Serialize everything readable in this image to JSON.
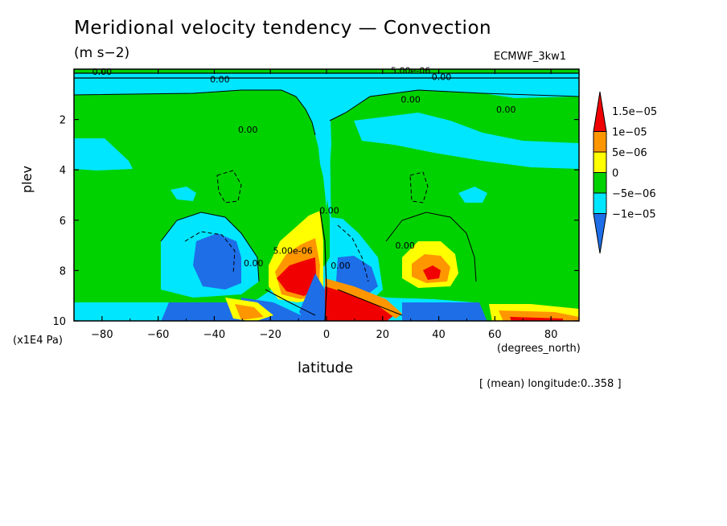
{
  "chart_data": {
    "type": "heatmap",
    "title": "Meridional velocity tendency — Convection",
    "units": "(m s−2)",
    "dataset": "ECMWF_3kw1",
    "xlabel": "latitude",
    "ylabel": "plev",
    "x_units": "(degrees_north)",
    "y_units": "(x1E4 Pa)",
    "note": "[ (mean) longitude:0..358 ]",
    "xlim": [
      -90,
      90
    ],
    "ylim": [
      0,
      10
    ],
    "y_inverted": true,
    "x_ticks": [
      {
        "v": -80,
        "label": "−80"
      },
      {
        "v": -60,
        "label": "−60"
      },
      {
        "v": -40,
        "label": "−40"
      },
      {
        "v": -20,
        "label": "−20"
      },
      {
        "v": 0,
        "label": "0"
      },
      {
        "v": 20,
        "label": "20"
      },
      {
        "v": 40,
        "label": "40"
      },
      {
        "v": 60,
        "label": "60"
      },
      {
        "v": 80,
        "label": "80"
      }
    ],
    "y_ticks": [
      {
        "v": 2,
        "label": "2"
      },
      {
        "v": 4,
        "label": "4"
      },
      {
        "v": 6,
        "label": "6"
      },
      {
        "v": 8,
        "label": "8"
      },
      {
        "v": 10,
        "label": "10"
      }
    ],
    "levels": [
      {
        "label": "−1e−05",
        "color": "#1e6ee8"
      },
      {
        "label": "−5e−06",
        "color": "#00e6ff"
      },
      {
        "label": "0",
        "color": "#00d200"
      },
      {
        "label": "5e−06",
        "color": "#ffff00"
      },
      {
        "label": "1e−05",
        "color": "#ff9600"
      },
      {
        "label": "1.5e−05",
        "color": "#f00000"
      }
    ],
    "contour_labels": [
      {
        "text": "0.00",
        "lat": -80,
        "p": 0.1
      },
      {
        "text": "0.00",
        "lat": -38,
        "p": 0.4
      },
      {
        "text": "0.00",
        "lat": -28,
        "p": 2.4
      },
      {
        "text": "0.00",
        "lat": 30,
        "p": 1.2
      },
      {
        "text": "0.00",
        "lat": 64,
        "p": 1.6
      },
      {
        "text": "0.00",
        "lat": 41,
        "p": 0.3
      },
      {
        "text": "5.00e-06",
        "lat": 30,
        "p": 0.05
      },
      {
        "text": "0.00",
        "lat": -26,
        "p": 7.7
      },
      {
        "text": "5.00e-06",
        "lat": -12,
        "p": 7.2
      },
      {
        "text": "0.00",
        "lat": 1,
        "p": 5.6
      },
      {
        "text": "0.00",
        "lat": 5,
        "p": 7.8
      },
      {
        "text": "0.00",
        "lat": 28,
        "p": 7.0
      }
    ]
  }
}
